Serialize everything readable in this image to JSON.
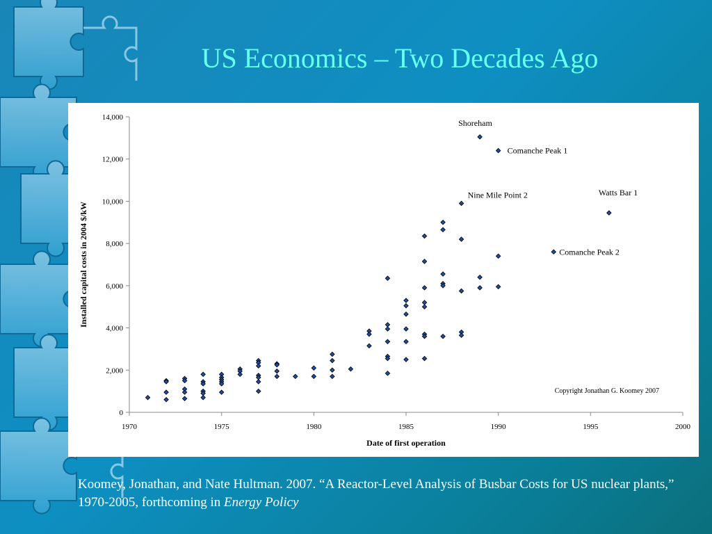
{
  "slide": {
    "title": "US Economics – Two Decades Ago",
    "citation_main": "Koomey, Jonathan, and Nate Hultman. 2007. “A Reactor-Level Analysis of Busbar Costs for US nuclear plants,” 1970-2005, forthcoming in ",
    "citation_journal": "Energy Policy"
  },
  "colors": {
    "title": "#66ffee",
    "point_fill": "#1f4e9e",
    "point_stroke": "#000000"
  },
  "chart_data": {
    "type": "scatter",
    "xlabel": "Date of first operation",
    "ylabel": "Installed capital costs in 2004 $/kW",
    "xlim": [
      1970,
      2000
    ],
    "ylim": [
      0,
      14000
    ],
    "xticks": [
      1970,
      1975,
      1980,
      1985,
      1990,
      1995,
      2000
    ],
    "yticks": [
      0,
      2000,
      4000,
      6000,
      8000,
      10000,
      12000,
      14000
    ],
    "xtick_labels": [
      "1970",
      "1975",
      "1980",
      "1985",
      "1990",
      "1995",
      "2000"
    ],
    "ytick_labels": [
      "0",
      "2,000",
      "4,000",
      "6,000",
      "8,000",
      "10,000",
      "12,000",
      "14,000"
    ],
    "grid": false,
    "legend": "none",
    "copyright": "Copyright Jonathan G. Koomey 2007",
    "points": [
      [
        1971,
        700
      ],
      [
        1972,
        1500
      ],
      [
        1972,
        1450
      ],
      [
        1972,
        950
      ],
      [
        1972,
        600
      ],
      [
        1973,
        1600
      ],
      [
        1973,
        1500
      ],
      [
        1973,
        1100
      ],
      [
        1973,
        950
      ],
      [
        1973,
        650
      ],
      [
        1974,
        1800
      ],
      [
        1974,
        1450
      ],
      [
        1974,
        1350
      ],
      [
        1974,
        1000
      ],
      [
        1974,
        900
      ],
      [
        1974,
        700
      ],
      [
        1975,
        1800
      ],
      [
        1975,
        1650
      ],
      [
        1975,
        1550
      ],
      [
        1975,
        1450
      ],
      [
        1975,
        1350
      ],
      [
        1975,
        950
      ],
      [
        1976,
        2050
      ],
      [
        1976,
        1950
      ],
      [
        1976,
        1800
      ],
      [
        1977,
        2450
      ],
      [
        1977,
        2350
      ],
      [
        1977,
        2200
      ],
      [
        1977,
        1750
      ],
      [
        1977,
        1650
      ],
      [
        1977,
        1450
      ],
      [
        1977,
        1000
      ],
      [
        1978,
        2300
      ],
      [
        1978,
        2250
      ],
      [
        1978,
        1950
      ],
      [
        1978,
        1700
      ],
      [
        1979,
        1700
      ],
      [
        1980,
        2100
      ],
      [
        1980,
        1700
      ],
      [
        1981,
        2750
      ],
      [
        1981,
        2450
      ],
      [
        1981,
        2000
      ],
      [
        1981,
        1700
      ],
      [
        1982,
        2050
      ],
      [
        1983,
        3850
      ],
      [
        1983,
        3700
      ],
      [
        1983,
        3150
      ],
      [
        1984,
        6350
      ],
      [
        1984,
        4150
      ],
      [
        1984,
        3950
      ],
      [
        1984,
        3350
      ],
      [
        1984,
        2650
      ],
      [
        1984,
        2550
      ],
      [
        1984,
        1850
      ],
      [
        1985,
        5300
      ],
      [
        1985,
        5050
      ],
      [
        1985,
        4650
      ],
      [
        1985,
        3950
      ],
      [
        1985,
        3350
      ],
      [
        1985,
        2500
      ],
      [
        1986,
        8350
      ],
      [
        1986,
        7150
      ],
      [
        1986,
        5900
      ],
      [
        1986,
        5200
      ],
      [
        1986,
        5000
      ],
      [
        1986,
        3700
      ],
      [
        1986,
        3600
      ],
      [
        1986,
        2550
      ],
      [
        1987,
        9000
      ],
      [
        1987,
        8650
      ],
      [
        1987,
        6550
      ],
      [
        1987,
        6100
      ],
      [
        1987,
        6000
      ],
      [
        1987,
        3600
      ],
      [
        1988,
        9900
      ],
      [
        1988,
        8200
      ],
      [
        1988,
        5750
      ],
      [
        1988,
        3800
      ],
      [
        1988,
        3650
      ],
      [
        1989,
        13050
      ],
      [
        1989,
        6400
      ],
      [
        1989,
        5900
      ],
      [
        1990,
        12400
      ],
      [
        1990,
        7400
      ],
      [
        1990,
        5950
      ],
      [
        1993,
        7600
      ],
      [
        1996,
        9450
      ]
    ],
    "annotations": [
      {
        "text": "Shoreham",
        "x": 1989,
        "y": 13050
      },
      {
        "text": "Comanche Peak 1",
        "x": 1990,
        "y": 12400
      },
      {
        "text": "Nine Mile Point 2",
        "x": 1988,
        "y": 9900
      },
      {
        "text": "Watts Bar 1",
        "x": 1996,
        "y": 9450
      },
      {
        "text": "Comanche Peak 2",
        "x": 1993,
        "y": 7600
      }
    ]
  }
}
